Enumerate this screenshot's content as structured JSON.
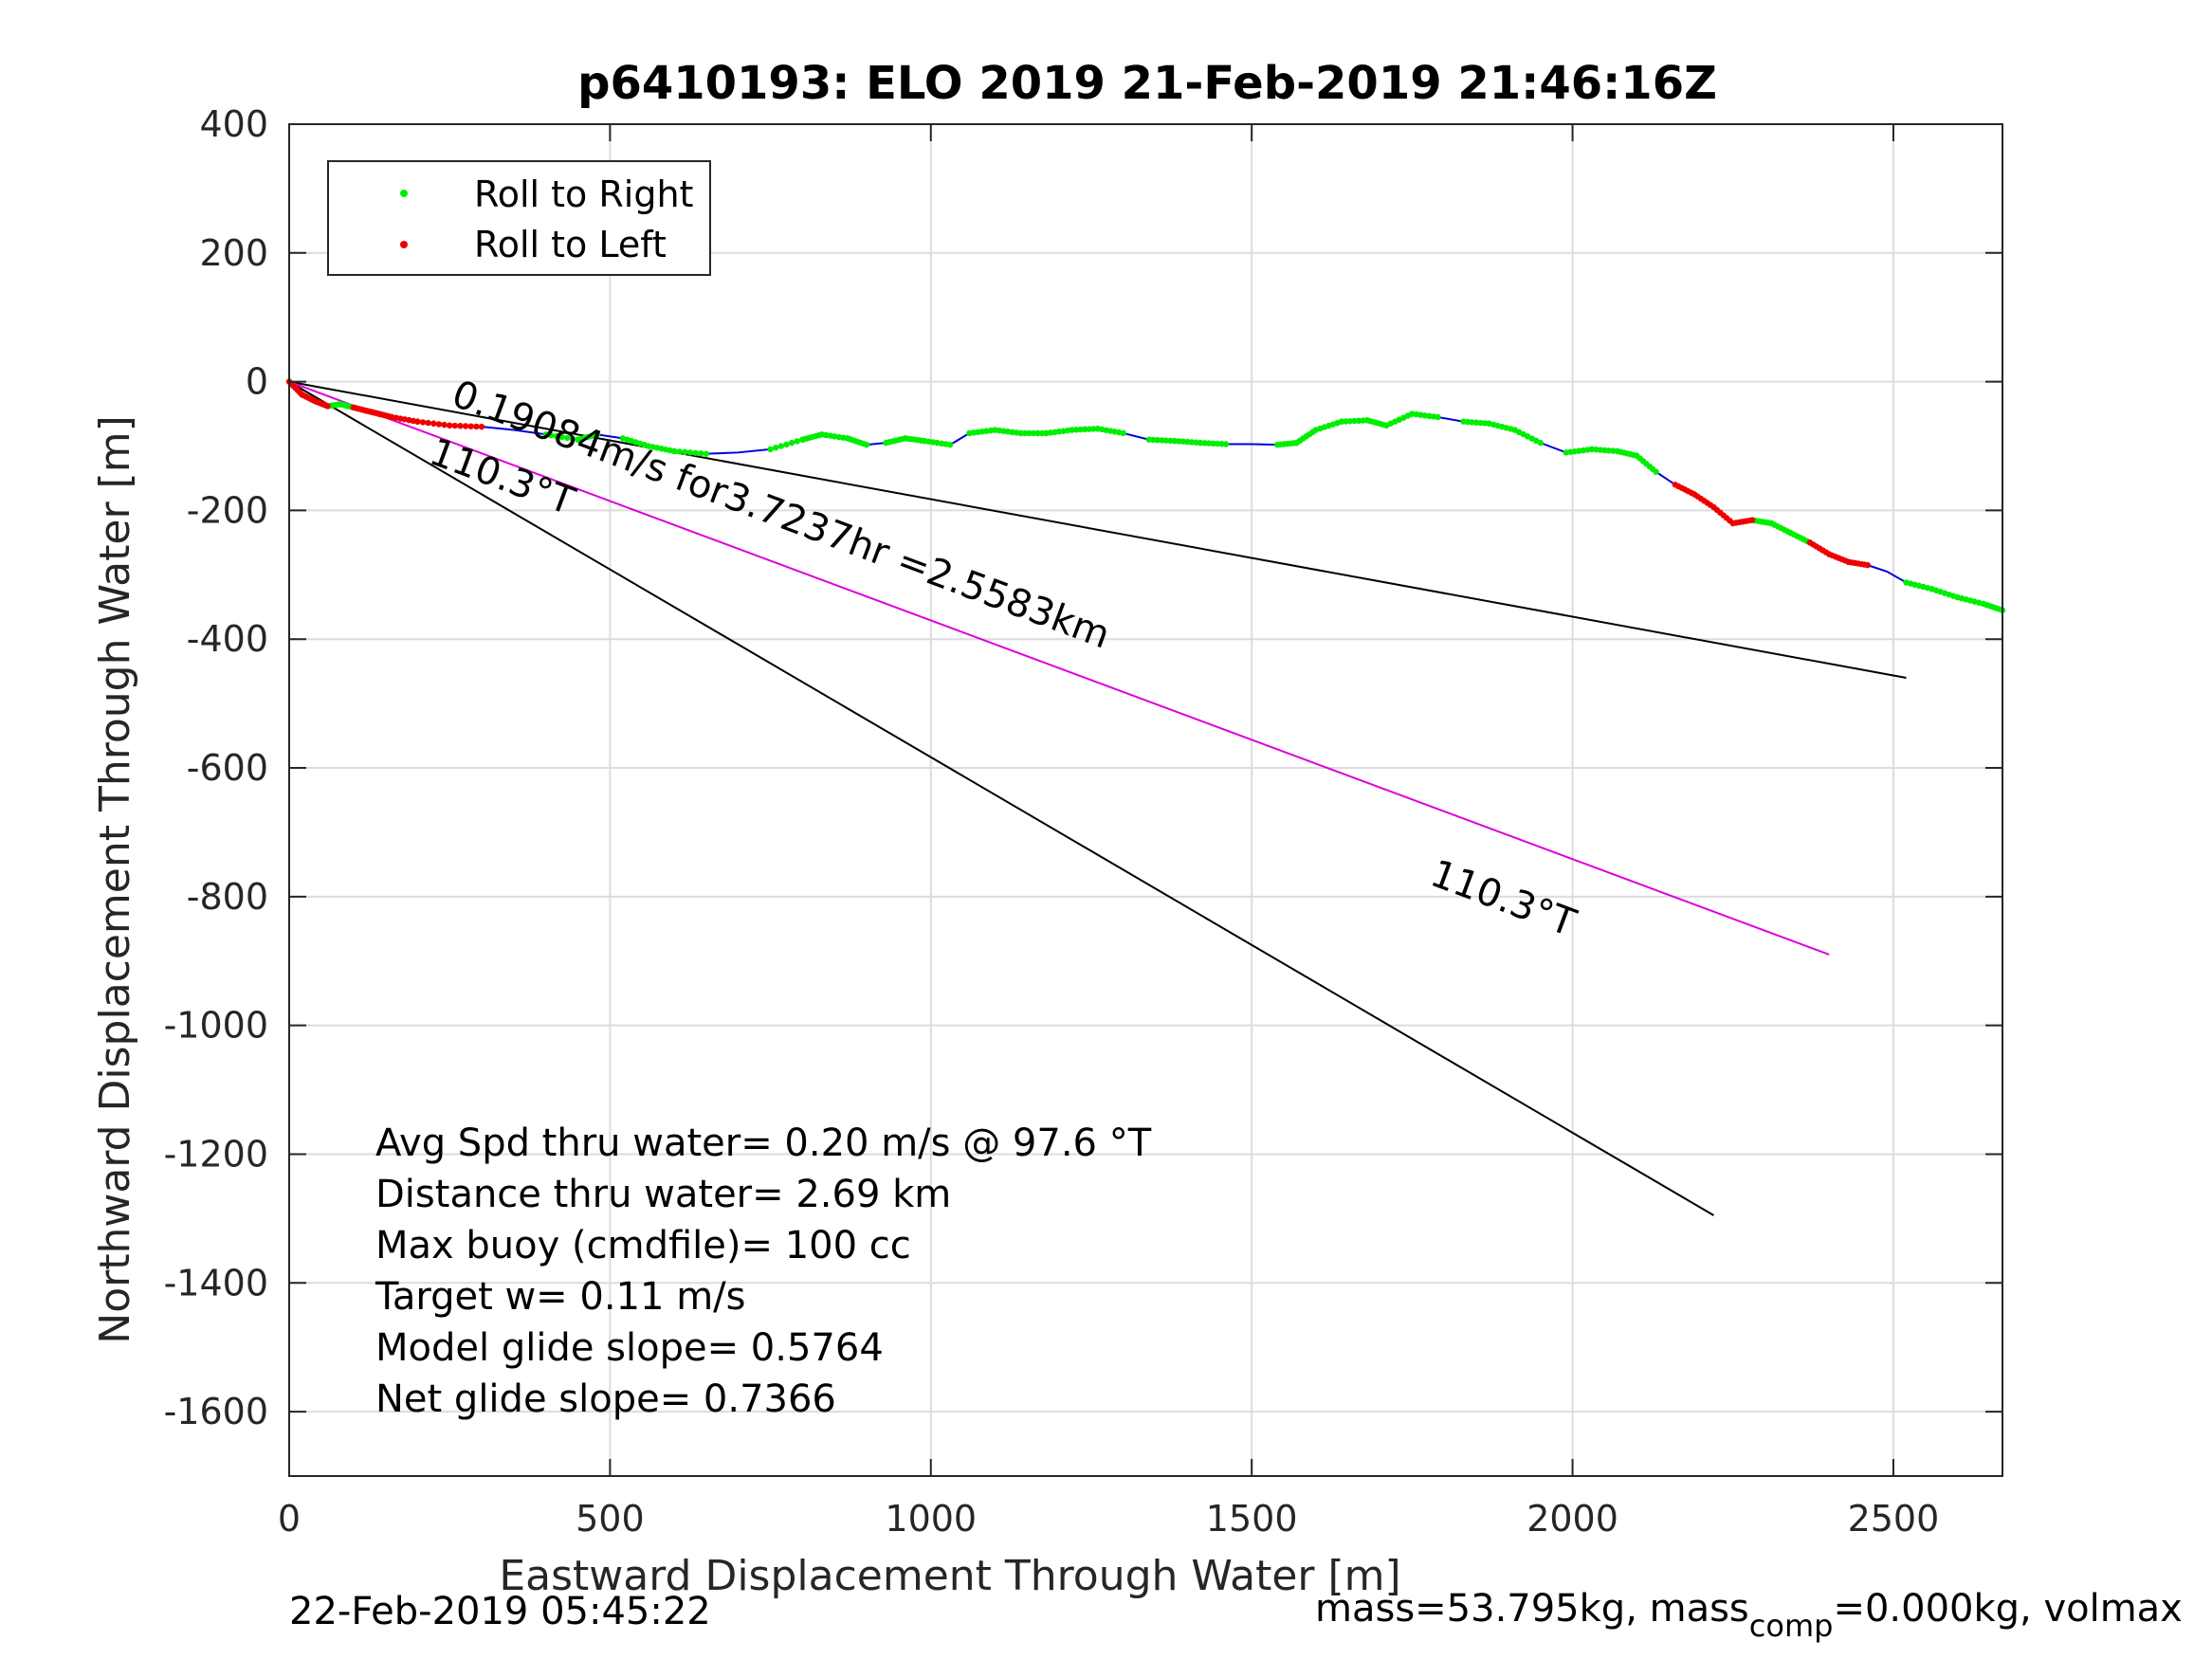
{
  "chart_data": {
    "type": "line",
    "title": "p6410193: ELO 2019 21-Feb-2019 21:46:16Z",
    "xlabel": "Eastward Displacement Through Water [m]",
    "ylabel": "Northward Displacement Through Water [m]",
    "xlim": [
      0,
      2670
    ],
    "ylim": [
      -1700,
      400
    ],
    "xticks": [
      0,
      500,
      1000,
      1500,
      2000,
      2500
    ],
    "xtick_labels": [
      "0",
      "500",
      "1000",
      "1500",
      "2000",
      "2500"
    ],
    "yticks": [
      400,
      200,
      0,
      -200,
      -400,
      -600,
      -800,
      -1000,
      -1200,
      -1400,
      -1600
    ],
    "ytick_labels": [
      "400",
      "200",
      "0",
      "-200",
      "-400",
      "-600",
      "-800",
      "-1000",
      "-1200",
      "-1400",
      "-1600"
    ],
    "grid": true,
    "legend": {
      "position": "top-left",
      "entries": [
        {
          "label": "Roll to Right",
          "color": "#00ee00"
        },
        {
          "label": "Roll to Left",
          "color": "#ee0000"
        }
      ]
    },
    "track": {
      "name": "glider track",
      "color": "#0000dd",
      "x": [
        0,
        20,
        40,
        60,
        80,
        100,
        120,
        140,
        160,
        200,
        250,
        300,
        350,
        400,
        450,
        480,
        520,
        560,
        600,
        650,
        700,
        750,
        800,
        830,
        870,
        900,
        930,
        960,
        990,
        1030,
        1060,
        1100,
        1140,
        1180,
        1220,
        1260,
        1300,
        1340,
        1380,
        1420,
        1460,
        1500,
        1540,
        1570,
        1600,
        1640,
        1680,
        1710,
        1750,
        1790,
        1830,
        1870,
        1910,
        1950,
        1990,
        2030,
        2070,
        2100,
        2130,
        2160,
        2190,
        2220,
        2250,
        2280,
        2310,
        2340,
        2370,
        2400,
        2430,
        2460,
        2490,
        2520,
        2560,
        2600,
        2640,
        2670
      ],
      "y": [
        0,
        -20,
        -30,
        -38,
        -35,
        -40,
        -45,
        -50,
        -55,
        -62,
        -68,
        -70,
        -75,
        -82,
        -90,
        -82,
        -88,
        -100,
        -108,
        -112,
        -110,
        -105,
        -90,
        -82,
        -88,
        -98,
        -95,
        -88,
        -92,
        -98,
        -80,
        -75,
        -80,
        -80,
        -75,
        -73,
        -80,
        -90,
        -92,
        -95,
        -97,
        -97,
        -98,
        -95,
        -75,
        -62,
        -60,
        -68,
        -50,
        -55,
        -62,
        -65,
        -75,
        -95,
        -110,
        -105,
        -108,
        -115,
        -140,
        -160,
        -175,
        -195,
        -220,
        -215,
        -220,
        -235,
        -250,
        -268,
        -280,
        -285,
        -295,
        -312,
        -322,
        -335,
        -345,
        -355
      ]
    },
    "roll_right_segments": [
      [
        0,
        5
      ],
      [
        13,
        15
      ],
      [
        16,
        19
      ],
      [
        21,
        25
      ],
      [
        26,
        29
      ],
      [
        30,
        36
      ],
      [
        37,
        40
      ],
      [
        42,
        44
      ],
      [
        44,
        49
      ],
      [
        50,
        53
      ],
      [
        54,
        58
      ],
      [
        63,
        66
      ],
      [
        71,
        75
      ]
    ],
    "roll_left_segments": [
      [
        0,
        3
      ],
      [
        5,
        11
      ],
      [
        59,
        63
      ],
      [
        66,
        69
      ]
    ],
    "lines": [
      {
        "name": "avg-heading-line-1",
        "color": "#000000",
        "x": [
          0,
          2520
        ],
        "y": [
          0,
          -460
        ]
      },
      {
        "name": "avg-heading-line-2",
        "color": "#000000",
        "x": [
          0,
          2220
        ],
        "y": [
          0,
          -1295
        ]
      },
      {
        "name": "current-vector-line",
        "color": "#dd00dd",
        "x": [
          0,
          2400
        ],
        "y": [
          0,
          -890
        ]
      }
    ],
    "annotations": [
      {
        "text": "0.19084m/s for3.7237hr =2.5583km",
        "x": 250,
        "y": -35,
        "rotation": 20.5
      },
      {
        "text": "110.3°T",
        "x": 215,
        "y": -125,
        "rotation": 20.5
      },
      {
        "text": "110.3°T",
        "x": 1775,
        "y": -780,
        "rotation": 20.5
      }
    ],
    "stats": [
      "Avg Spd thru water=  0.20 m/s @  97.6 °T",
      "Distance thru water=  2.69 km",
      "Max buoy (cmdfile)= 100 cc",
      "Target w= 0.11 m/s",
      "Model glide slope= 0.5764",
      "Net glide slope= 0.7366"
    ]
  },
  "footer": {
    "timestamp": "22-Feb-2019 05:45:22",
    "mass_prefix": "mass=53.795kg, mass",
    "mass_sub": "comp",
    "mass_suffix": "=0.000kg, volmax"
  }
}
